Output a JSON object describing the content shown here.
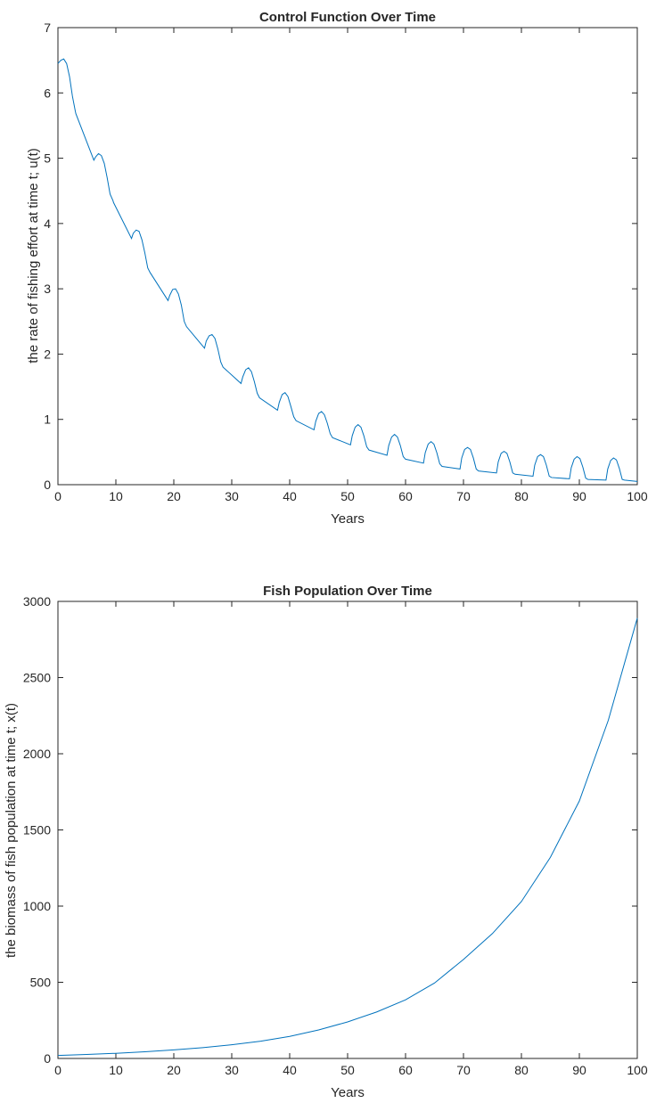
{
  "chart_data": [
    {
      "type": "line",
      "title": "Control Function Over Time",
      "xlabel": "Years",
      "ylabel": "the rate of fishing effort at time t; u(t)",
      "xlim": [
        0,
        100
      ],
      "ylim": [
        0,
        7
      ],
      "xticks": [
        0,
        10,
        20,
        30,
        40,
        50,
        60,
        70,
        80,
        90,
        100
      ],
      "yticks": [
        0,
        1,
        2,
        3,
        4,
        5,
        6,
        7
      ],
      "grid": false,
      "line_color": "#0072BD",
      "series": [
        {
          "x": [
            0,
            0.5,
            1,
            1.5,
            2,
            2.5,
            3,
            3.1,
            6.2,
            6.5,
            7,
            7.5,
            8,
            8.5,
            9,
            9.5,
            9.6,
            12.7,
            13,
            13.5,
            14,
            14.5,
            15,
            15.5,
            15.9,
            19,
            19.3,
            19.8,
            20.3,
            20.8,
            21.3,
            21.8,
            22.2,
            25.3,
            25.6,
            26.1,
            26.6,
            27.1,
            27.6,
            28.1,
            28.5,
            31.6,
            31.9,
            32.4,
            32.9,
            33.4,
            33.9,
            34.4,
            34.8,
            37.9,
            38.2,
            38.7,
            39.2,
            39.7,
            40.2,
            40.7,
            41.1,
            44.2,
            44.5,
            45,
            45.5,
            46,
            46.5,
            47,
            47.4,
            50.5,
            50.8,
            51.3,
            51.8,
            52.3,
            52.8,
            53.3,
            53.7,
            56.8,
            57.1,
            57.6,
            58.1,
            58.6,
            59.1,
            59.6,
            60,
            63.1,
            63.4,
            63.9,
            64.4,
            64.9,
            65.4,
            65.9,
            66.3,
            69.4,
            69.7,
            70.2,
            70.7,
            71.2,
            71.7,
            72.2,
            72.6,
            75.7,
            76,
            76.5,
            77,
            77.5,
            78,
            78.5,
            78.9,
            82,
            82.3,
            82.8,
            83.3,
            83.8,
            84.3,
            84.8,
            85.2,
            88.3,
            88.6,
            89.1,
            89.6,
            90.1,
            90.6,
            91.1,
            91.5,
            94.6,
            94.9,
            95.4,
            95.9,
            96.4,
            96.9,
            97.4,
            97.8,
            100
          ],
          "y": [
            6.45,
            6.5,
            6.52,
            6.45,
            6.25,
            5.95,
            5.72,
            5.68,
            4.97,
            5.02,
            5.07,
            5.04,
            4.92,
            4.7,
            4.45,
            4.35,
            4.32,
            3.77,
            3.85,
            3.9,
            3.88,
            3.75,
            3.55,
            3.32,
            3.25,
            2.82,
            2.9,
            2.99,
            3.0,
            2.92,
            2.75,
            2.5,
            2.42,
            2.09,
            2.2,
            2.28,
            2.3,
            2.24,
            2.08,
            1.88,
            1.8,
            1.55,
            1.65,
            1.76,
            1.79,
            1.73,
            1.58,
            1.4,
            1.33,
            1.14,
            1.26,
            1.38,
            1.41,
            1.35,
            1.2,
            1.04,
            0.98,
            0.84,
            0.97,
            1.09,
            1.12,
            1.07,
            0.94,
            0.78,
            0.72,
            0.61,
            0.75,
            0.88,
            0.92,
            0.88,
            0.75,
            0.58,
            0.53,
            0.45,
            0.6,
            0.73,
            0.77,
            0.73,
            0.6,
            0.43,
            0.39,
            0.33,
            0.49,
            0.62,
            0.66,
            0.62,
            0.49,
            0.32,
            0.28,
            0.24,
            0.41,
            0.54,
            0.57,
            0.54,
            0.41,
            0.24,
            0.21,
            0.18,
            0.35,
            0.48,
            0.51,
            0.48,
            0.35,
            0.18,
            0.16,
            0.13,
            0.3,
            0.43,
            0.46,
            0.43,
            0.3,
            0.13,
            0.11,
            0.09,
            0.26,
            0.39,
            0.43,
            0.4,
            0.27,
            0.1,
            0.08,
            0.07,
            0.24,
            0.37,
            0.41,
            0.38,
            0.25,
            0.08,
            0.07,
            0.05
          ]
        }
      ]
    },
    {
      "type": "line",
      "title": "Fish Population Over Time",
      "xlabel": "Years",
      "ylabel": "the biomass of fish population at time t; x(t)",
      "xlim": [
        0,
        100
      ],
      "ylim": [
        0,
        3000
      ],
      "xticks": [
        0,
        10,
        20,
        30,
        40,
        50,
        60,
        70,
        80,
        90,
        100
      ],
      "yticks": [
        0,
        500,
        1000,
        1500,
        2000,
        2500,
        3000
      ],
      "grid": false,
      "line_color": "#0072BD",
      "series": [
        {
          "x": [
            0,
            5,
            10,
            15,
            20,
            25,
            30,
            35,
            40,
            45,
            50,
            55,
            60,
            65,
            70,
            75,
            80,
            85,
            90,
            95,
            100
          ],
          "y": [
            20,
            26,
            34,
            44,
            56,
            71,
            90,
            113,
            145,
            187,
            240,
            305,
            385,
            495,
            650,
            820,
            1030,
            1320,
            1690,
            2220,
            2890
          ]
        }
      ]
    }
  ]
}
